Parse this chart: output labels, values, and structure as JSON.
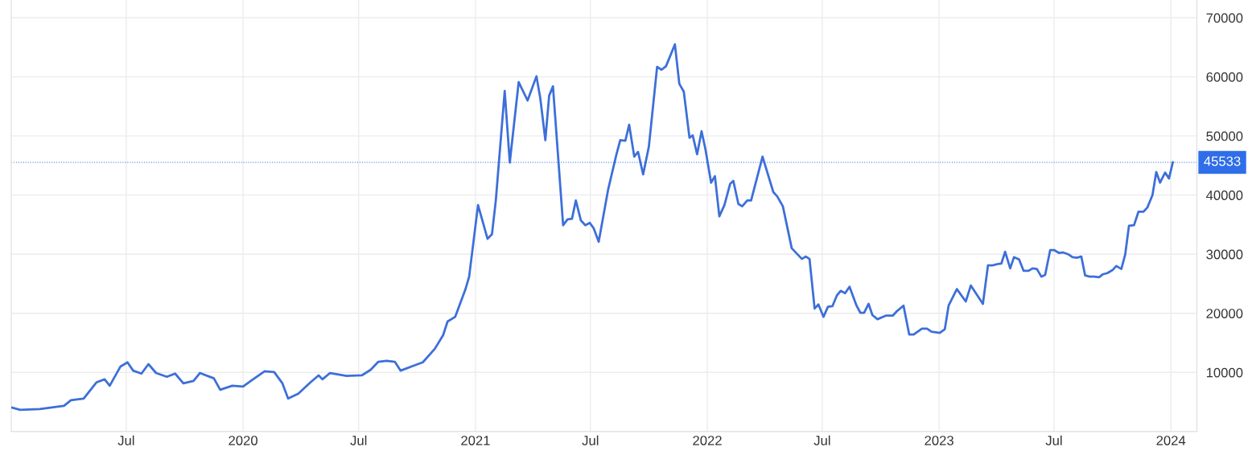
{
  "chart_data": {
    "type": "line",
    "x": [
      "2019-01-01",
      "2019-01-15",
      "2019-02-15",
      "2019-03-25",
      "2019-04-05",
      "2019-04-25",
      "2019-05-15",
      "2019-05-28",
      "2019-06-05",
      "2019-06-22",
      "2019-07-03",
      "2019-07-12",
      "2019-07-25",
      "2019-08-05",
      "2019-08-17",
      "2019-09-03",
      "2019-09-16",
      "2019-09-29",
      "2019-10-15",
      "2019-10-25",
      "2019-11-16",
      "2019-11-26",
      "2019-12-15",
      "2020-01-01",
      "2020-01-15",
      "2020-02-04",
      "2020-02-19",
      "2020-03-03",
      "2020-03-12",
      "2020-03-28",
      "2020-04-16",
      "2020-04-29",
      "2020-05-05",
      "2020-05-17",
      "2020-06-12",
      "2020-07-06",
      "2020-07-20",
      "2020-08-01",
      "2020-08-14",
      "2020-08-27",
      "2020-09-05",
      "2020-09-22",
      "2020-10-10",
      "2020-10-29",
      "2020-11-11",
      "2020-11-18",
      "2020-11-30",
      "2020-12-16",
      "2020-12-22",
      "2021-01-05",
      "2021-01-20",
      "2021-01-27",
      "2021-02-02",
      "2021-02-16",
      "2021-02-24",
      "2021-03-10",
      "2021-03-24",
      "2021-04-07",
      "2021-04-13",
      "2021-04-21",
      "2021-04-27",
      "2021-05-03",
      "2021-05-19",
      "2021-05-26",
      "2021-06-02",
      "2021-06-08",
      "2021-06-16",
      "2021-06-23",
      "2021-06-30",
      "2021-07-06",
      "2021-07-14",
      "2021-07-29",
      "2021-08-11",
      "2021-08-17",
      "2021-08-25",
      "2021-08-31",
      "2021-09-08",
      "2021-09-14",
      "2021-09-22",
      "2021-10-01",
      "2021-10-14",
      "2021-10-21",
      "2021-10-28",
      "2021-11-11",
      "2021-11-18",
      "2021-11-25",
      "2021-12-04",
      "2021-12-09",
      "2021-12-16",
      "2021-12-23",
      "2021-12-29",
      "2022-01-07",
      "2022-01-13",
      "2022-01-20",
      "2022-01-28",
      "2022-02-06",
      "2022-02-11",
      "2022-02-19",
      "2022-02-25",
      "2022-03-05",
      "2022-03-11",
      "2022-03-20",
      "2022-03-29",
      "2022-04-15",
      "2022-04-21",
      "2022-04-30",
      "2022-05-14",
      "2022-05-30",
      "2022-06-05",
      "2022-06-11",
      "2022-06-19",
      "2022-06-25",
      "2022-07-03",
      "2022-07-10",
      "2022-07-17",
      "2022-07-24",
      "2022-07-30",
      "2022-08-06",
      "2022-08-13",
      "2022-08-24",
      "2022-08-30",
      "2022-09-05",
      "2022-09-12",
      "2022-09-18",
      "2022-09-26",
      "2022-10-09",
      "2022-10-20",
      "2022-10-27",
      "2022-11-06",
      "2022-11-15",
      "2022-11-22",
      "2022-12-05",
      "2022-12-13",
      "2022-12-20",
      "2023-01-02",
      "2023-01-10",
      "2023-01-16",
      "2023-01-29",
      "2023-02-12",
      "2023-02-20",
      "2023-03-11",
      "2023-03-19",
      "2023-03-26",
      "2023-04-02",
      "2023-04-09",
      "2023-04-15",
      "2023-04-23",
      "2023-04-29",
      "2023-05-07",
      "2023-05-14",
      "2023-05-22",
      "2023-05-28",
      "2023-06-04",
      "2023-06-11",
      "2023-06-17",
      "2023-06-25",
      "2023-07-01",
      "2023-07-09",
      "2023-07-15",
      "2023-07-23",
      "2023-07-30",
      "2023-08-06",
      "2023-08-13",
      "2023-08-19",
      "2023-08-26",
      "2023-09-02",
      "2023-09-10",
      "2023-09-16",
      "2023-09-23",
      "2023-10-01",
      "2023-10-07",
      "2023-10-15",
      "2023-10-21",
      "2023-10-27",
      "2023-11-04",
      "2023-11-11",
      "2023-11-19",
      "2023-11-25",
      "2023-12-03",
      "2023-12-09",
      "2023-12-15",
      "2023-12-23",
      "2023-12-29",
      "2024-01-04"
    ],
    "series": [
      {
        "color": "#3d6fd9",
        "values": [
          4080,
          3670,
          3800,
          4350,
          5300,
          5570,
          8300,
          8830,
          7750,
          11000,
          11700,
          10300,
          9800,
          11400,
          9900,
          9250,
          9800,
          8150,
          8560,
          9900,
          9000,
          7070,
          7750,
          7600,
          8700,
          10200,
          10050,
          8150,
          5570,
          6400,
          8300,
          9500,
          8830,
          9900,
          9400,
          9500,
          10450,
          11800,
          11960,
          11800,
          10300,
          11000,
          11700,
          14000,
          16300,
          18600,
          19400,
          24000,
          26200,
          38300,
          32600,
          33400,
          39100,
          57600,
          45500,
          59100,
          56000,
          60100,
          56400,
          49300,
          56800,
          58400,
          34900,
          35900,
          36000,
          39100,
          35700,
          34900,
          35300,
          34400,
          32100,
          41000,
          46900,
          49300,
          49200,
          51900,
          46500,
          47300,
          43500,
          48200,
          61700,
          61200,
          61800,
          65500,
          58800,
          57500,
          49700,
          50100,
          46900,
          50800,
          47800,
          42100,
          43200,
          36400,
          38300,
          41900,
          42400,
          38500,
          38100,
          39100,
          39100,
          42800,
          46500,
          40500,
          39800,
          38100,
          31000,
          29200,
          29600,
          29200,
          20800,
          21500,
          19400,
          21100,
          21200,
          23000,
          23800,
          23400,
          24500,
          21300,
          20100,
          20100,
          21600,
          19700,
          19000,
          19600,
          19600,
          20400,
          21300,
          16400,
          16400,
          17400,
          17400,
          16900,
          16700,
          17300,
          21300,
          24100,
          22000,
          24700,
          21600,
          28100,
          28100,
          28300,
          28400,
          30400,
          27600,
          29500,
          29100,
          27200,
          27200,
          27600,
          27500,
          26200,
          26500,
          30700,
          30700,
          30200,
          30300,
          30000,
          29500,
          29400,
          29600,
          26400,
          26200,
          26200,
          26100,
          26600,
          26800,
          27300,
          28000,
          27500,
          29900,
          34800,
          34900,
          37200,
          37200,
          37900,
          40000,
          43900,
          42100,
          43800,
          42800,
          45533
        ]
      }
    ],
    "xlim": [
      "2019-01-01",
      "2024-02-11"
    ],
    "xticks": [
      {
        "value": "2019-07-01",
        "label": "Jul"
      },
      {
        "value": "2020-01-01",
        "label": "2020"
      },
      {
        "value": "2020-07-01",
        "label": "Jul"
      },
      {
        "value": "2021-01-01",
        "label": "2021"
      },
      {
        "value": "2021-07-01",
        "label": "Jul"
      },
      {
        "value": "2022-01-01",
        "label": "2022"
      },
      {
        "value": "2022-07-01",
        "label": "Jul"
      },
      {
        "value": "2023-01-01",
        "label": "2023"
      },
      {
        "value": "2023-07-01",
        "label": "Jul"
      },
      {
        "value": "2024-01-01",
        "label": "2024"
      }
    ],
    "ylim": [
      0,
      73000
    ],
    "yticks": [
      10000,
      20000,
      30000,
      40000,
      50000,
      60000,
      70000
    ],
    "ref_lines": [
      {
        "axis": "y",
        "value": 45533,
        "label": "45533",
        "color": "#2f6ee8",
        "line_style": "dotted"
      }
    ],
    "grid": true,
    "marker": "none",
    "line_style": "solid"
  }
}
